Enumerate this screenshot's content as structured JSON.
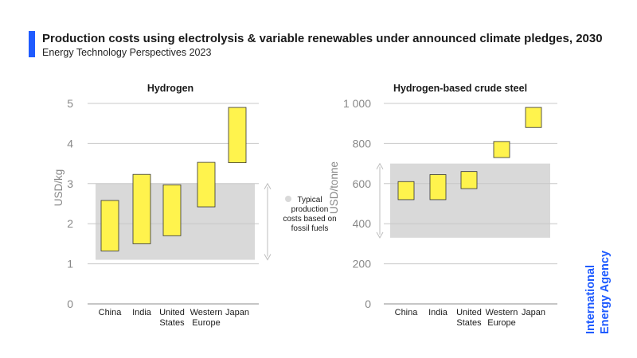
{
  "header": {
    "title": "Production costs using electrolysis & variable renewables under announced climate pledges, 2030",
    "subtitle": "Energy Technology Perspectives 2023"
  },
  "legend": {
    "label_lines": [
      "Typical",
      "production",
      "costs based on",
      "fossil fuels"
    ]
  },
  "logo": {
    "lines": [
      "International",
      "Energy Agency"
    ]
  },
  "colors": {
    "accent": "#1f5bff",
    "bar_fill": "#fff34d",
    "bar_stroke": "#333333",
    "fossil_band": "#d9d9d9"
  },
  "chart_data": [
    {
      "type": "bar",
      "subtype": "floating-range",
      "title": "Hydrogen",
      "ylabel": "USD/kg",
      "ylim": [
        0,
        5
      ],
      "yticks": [
        "0",
        "1",
        "2",
        "3",
        "4",
        "5"
      ],
      "ytick_values": [
        0,
        1,
        2,
        3,
        4,
        5
      ],
      "categories": [
        [
          "China"
        ],
        [
          "India"
        ],
        [
          "United",
          "States"
        ],
        [
          "Western",
          "Europe"
        ],
        [
          "Japan"
        ]
      ],
      "ranges": [
        [
          1.32,
          2.58
        ],
        [
          1.5,
          3.23
        ],
        [
          1.7,
          2.97
        ],
        [
          2.42,
          3.53
        ],
        [
          3.52,
          4.9
        ]
      ],
      "fossil_band": [
        1.1,
        3.0
      ]
    },
    {
      "type": "bar",
      "subtype": "floating-range",
      "title": "Hydrogen-based crude steel",
      "ylabel": "USD/tonne",
      "ylim": [
        0,
        1000
      ],
      "yticks": [
        "0",
        "200",
        "400",
        "600",
        "800",
        "1 000"
      ],
      "ytick_values": [
        0,
        200,
        400,
        600,
        800,
        1000
      ],
      "categories": [
        [
          "China"
        ],
        [
          "India"
        ],
        [
          "United",
          "States"
        ],
        [
          "Western",
          "Europe"
        ],
        [
          "Japan"
        ]
      ],
      "ranges": [
        [
          520,
          610
        ],
        [
          520,
          645
        ],
        [
          575,
          660
        ],
        [
          730,
          810
        ],
        [
          880,
          980
        ]
      ],
      "fossil_band": [
        330,
        700
      ]
    }
  ]
}
